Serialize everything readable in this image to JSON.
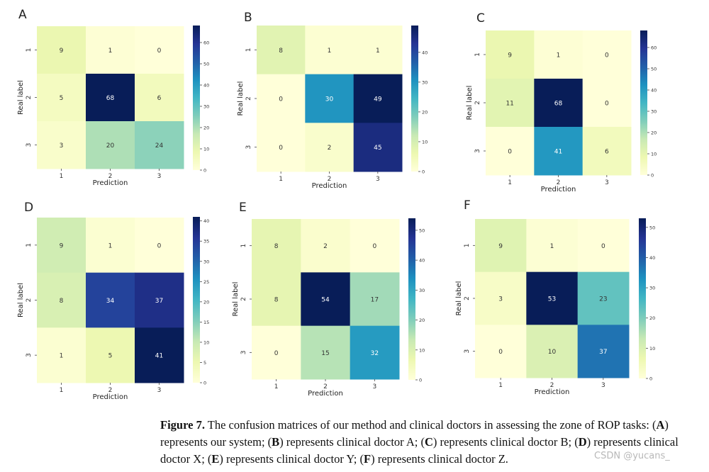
{
  "chart_data": [
    {
      "type": "heatmap",
      "panel": "A",
      "xlabel": "Prediction",
      "ylabel": "Real label",
      "x_ticks": [
        "1",
        "2",
        "3"
      ],
      "y_ticks": [
        "1",
        "2",
        "3"
      ],
      "matrix": [
        [
          9,
          1,
          0
        ],
        [
          5,
          68,
          6
        ],
        [
          3,
          20,
          24
        ]
      ],
      "colorbar": {
        "vmin": 0,
        "vmax": 68,
        "ticks": [
          0,
          10,
          20,
          30,
          40,
          50,
          60
        ]
      }
    },
    {
      "type": "heatmap",
      "panel": "B",
      "xlabel": "Prediction",
      "ylabel": "Real label",
      "x_ticks": [
        "1",
        "2",
        "3"
      ],
      "y_ticks": [
        "1",
        "2",
        "3"
      ],
      "matrix": [
        [
          8,
          1,
          1
        ],
        [
          0,
          30,
          49
        ],
        [
          0,
          2,
          45
        ]
      ],
      "colorbar": {
        "vmin": 0,
        "vmax": 49,
        "ticks": [
          0,
          10,
          20,
          30,
          40
        ]
      }
    },
    {
      "type": "heatmap",
      "panel": "C",
      "xlabel": "Prediction",
      "ylabel": "Real label",
      "x_ticks": [
        "1",
        "2",
        "3"
      ],
      "y_ticks": [
        "1",
        "2",
        "3"
      ],
      "matrix": [
        [
          9,
          1,
          0
        ],
        [
          11,
          68,
          0
        ],
        [
          0,
          41,
          6
        ]
      ],
      "colorbar": {
        "vmin": 0,
        "vmax": 68,
        "ticks": [
          0,
          10,
          20,
          30,
          40,
          50,
          60
        ]
      }
    },
    {
      "type": "heatmap",
      "panel": "D",
      "xlabel": "Prediction",
      "ylabel": "Real label",
      "x_ticks": [
        "1",
        "2",
        "3"
      ],
      "y_ticks": [
        "1",
        "2",
        "3"
      ],
      "matrix": [
        [
          9,
          1,
          0
        ],
        [
          8,
          34,
          37
        ],
        [
          1,
          5,
          41
        ]
      ],
      "colorbar": {
        "vmin": 0,
        "vmax": 41,
        "ticks": [
          0,
          5,
          10,
          15,
          20,
          25,
          30,
          35,
          40
        ]
      }
    },
    {
      "type": "heatmap",
      "panel": "E",
      "xlabel": "Prediction",
      "ylabel": "Real label",
      "x_ticks": [
        "1",
        "2",
        "3"
      ],
      "y_ticks": [
        "1",
        "2",
        "3"
      ],
      "matrix": [
        [
          8,
          2,
          0
        ],
        [
          8,
          54,
          17
        ],
        [
          0,
          15,
          32
        ]
      ],
      "colorbar": {
        "vmin": 0,
        "vmax": 54,
        "ticks": [
          0,
          10,
          20,
          30,
          40,
          50
        ]
      }
    },
    {
      "type": "heatmap",
      "panel": "F",
      "xlabel": "Prediction",
      "ylabel": "Real label",
      "x_ticks": [
        "1",
        "2",
        "3"
      ],
      "y_ticks": [
        "1",
        "2",
        "3"
      ],
      "matrix": [
        [
          9,
          1,
          0
        ],
        [
          3,
          53,
          23
        ],
        [
          0,
          10,
          37
        ]
      ],
      "colorbar": {
        "vmin": 0,
        "vmax": 53,
        "ticks": [
          0,
          10,
          20,
          30,
          40,
          50
        ]
      }
    }
  ],
  "caption": {
    "label": "Figure 7.",
    "text_1": " The confusion matrices of our method and clinical doctors in assessing the zone of ROP tasks: (",
    "a": "A",
    "text_2": ") represents our system; (",
    "b": "B",
    "text_3": ") represents clinical doctor A; (",
    "c": "C",
    "text_4": ") represents clinical doctor B; (",
    "d": "D",
    "text_5": ") represents clinical doctor X; (",
    "e": "E",
    "text_6": ") represents clinical doctor Y; (",
    "f": "F",
    "text_7": ") represents clinical doctor Z."
  },
  "watermark": "CSDN @yucans_",
  "colormap": [
    "#ffffd9",
    "#edf8b1",
    "#c7e9b4",
    "#7fcdbb",
    "#41b6c4",
    "#1d91c0",
    "#225ea8",
    "#253494",
    "#081d58"
  ]
}
